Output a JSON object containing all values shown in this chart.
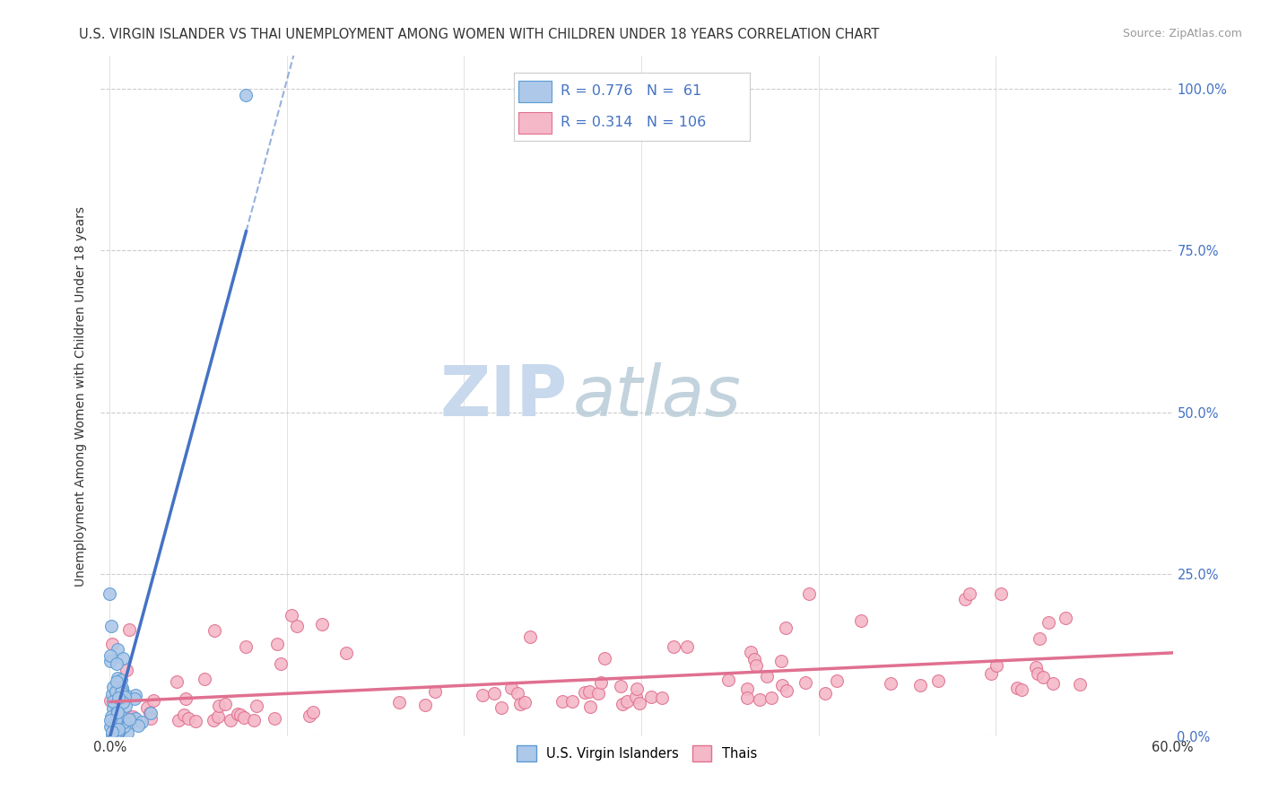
{
  "title": "U.S. VIRGIN ISLANDER VS THAI UNEMPLOYMENT AMONG WOMEN WITH CHILDREN UNDER 18 YEARS CORRELATION CHART",
  "source": "Source: ZipAtlas.com",
  "ylabel": "Unemployment Among Women with Children Under 18 years",
  "xlim": [
    -0.005,
    0.6
  ],
  "ylim": [
    0.0,
    1.05
  ],
  "xticks": [
    0.0,
    0.1,
    0.2,
    0.3,
    0.4,
    0.5,
    0.6
  ],
  "xticklabels": [
    "0.0%",
    "",
    "",
    "",
    "",
    "",
    "60.0%"
  ],
  "ytick_positions": [
    0.0,
    0.25,
    0.5,
    0.75,
    1.0
  ],
  "ytick_labels_right": [
    "0.0%",
    "25.0%",
    "50.0%",
    "75.0%",
    "100.0%"
  ],
  "group1_color": "#adc8e8",
  "group1_edge_color": "#5b9bd5",
  "group2_color": "#f4b8c8",
  "group2_edge_color": "#e07090",
  "line1_color": "#4472c4",
  "line2_color": "#e07090",
  "R1": 0.776,
  "N1": 61,
  "R2": 0.314,
  "N2": 106,
  "legend_label1": "U.S. Virgin Islanders",
  "legend_label2": "Thais",
  "watermark_zip_color": "#c8d8ed",
  "watermark_atlas_color": "#b8ccd8",
  "grid_color": "#cccccc",
  "background_color": "#ffffff",
  "title_fontsize": 10.5,
  "legend_fontsize": 12,
  "right_tick_color": "#4472c4"
}
